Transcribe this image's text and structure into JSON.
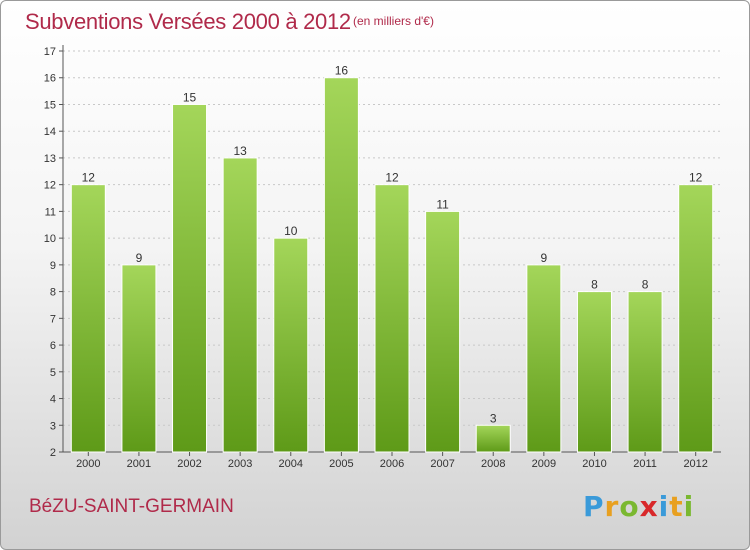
{
  "header": {
    "title": "Subventions Versées 2000 à 2012",
    "subtitle": "(en milliers d'€)"
  },
  "footer": {
    "commune": "BéZU-SAINT-GERMAIN",
    "logo": {
      "letters": [
        "P",
        "r",
        "o",
        "x",
        "i",
        "t",
        "i"
      ],
      "colors": [
        "#3a9ad9",
        "#e8a020",
        "#7ab830",
        "#d8282a",
        "#3a9ad9",
        "#e8a020",
        "#7ab830"
      ]
    }
  },
  "chart_data": {
    "type": "bar",
    "categories": [
      "2000",
      "2001",
      "2002",
      "2003",
      "2004",
      "2005",
      "2006",
      "2007",
      "2008",
      "2009",
      "2010",
      "2011",
      "2012"
    ],
    "values": [
      12,
      9,
      15,
      13,
      10,
      16,
      12,
      11,
      3,
      9,
      8,
      8,
      12
    ],
    "data_labels": [
      "12",
      "9",
      "15",
      "13",
      "10",
      "16",
      "12",
      "11",
      "3",
      "9",
      "8",
      "8",
      "12"
    ],
    "yticks": [
      "2",
      "3",
      "4",
      "5",
      "6",
      "7",
      "8",
      "9",
      "10",
      "11",
      "12",
      "13",
      "14",
      "15",
      "16",
      "17"
    ],
    "ylim": [
      2,
      17
    ],
    "grid": true,
    "bar_color_top": "#a4d65a",
    "bar_color_bottom": "#5e9a18",
    "bar_border": "#ffffff"
  }
}
